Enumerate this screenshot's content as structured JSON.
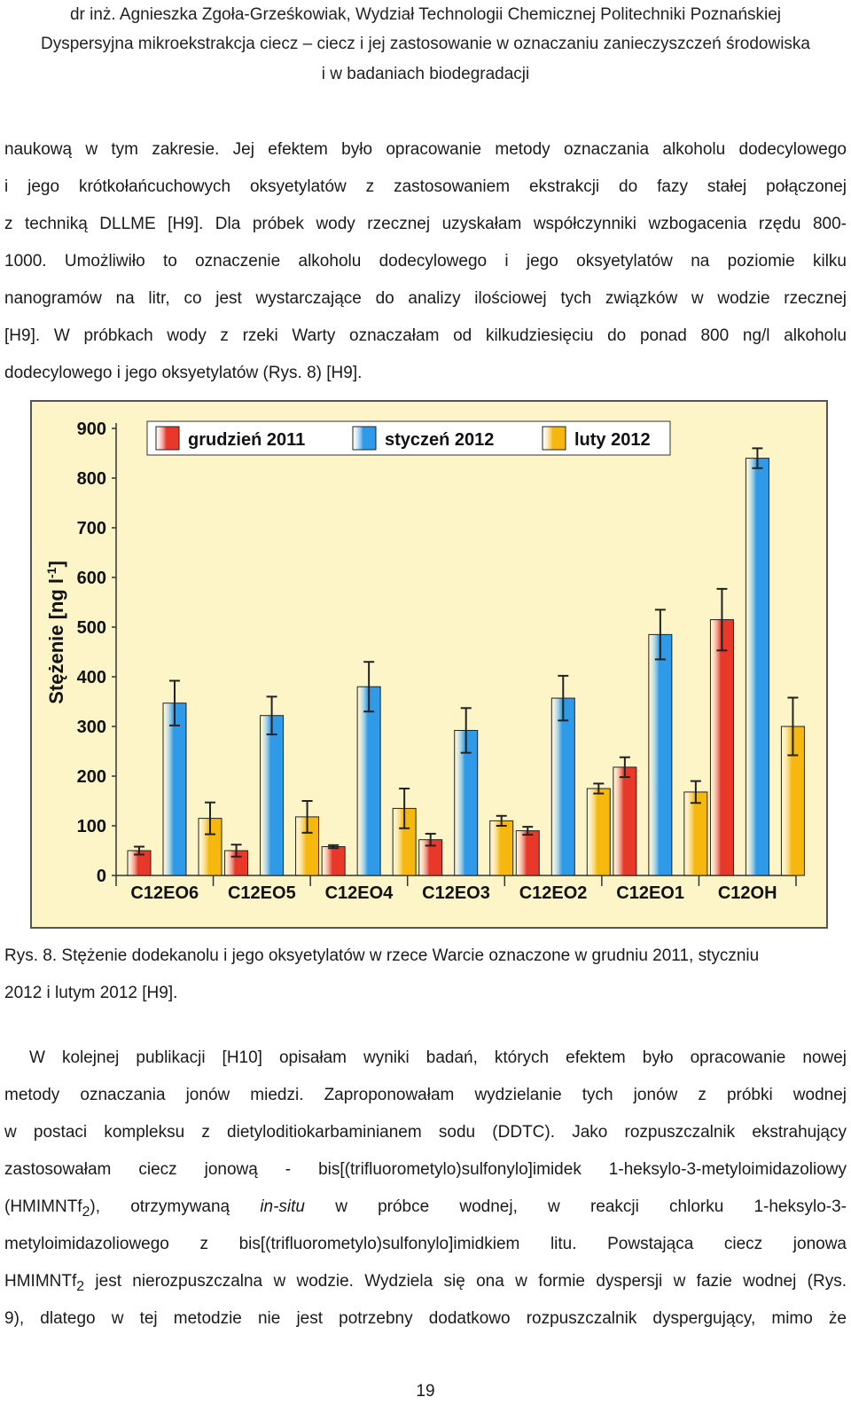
{
  "header": {
    "line1": "dr inż. Agnieszka Zgoła-Grześkowiak, Wydział Technologii Chemicznej Politechniki Poznańskiej",
    "line2": "Dyspersyjna mikroekstrakcja ciecz – ciecz i jej zastosowanie w oznaczaniu zanieczyszczeń środowiska",
    "line3": "i w badaniach biodegradacji"
  },
  "paragraph1": [
    "naukową w tym zakresie. Jej efektem było opracowanie metody oznaczania alkoholu dodecylowego",
    "i jego krótkołańcuchowych oksyetylatów z zastosowaniem ekstrakcji do fazy stałej połączonej",
    "z techniką DLLME [H9]. Dla próbek wody rzecznej uzyskałam współczynniki wzbogacenia rzędu 800-",
    "1000. Umożliwiło to oznaczenie alkoholu dodecylowego i jego oksyetylatów na poziomie kilku",
    "nanogramów na litr, co jest wystarczające do analizy ilościowej tych związków w wodzie rzecznej",
    "[H9]. W próbkach wody z rzeki Warty oznaczałam od kilkudziesięciu do ponad 800 ng/l alkoholu",
    "dodecylowego i jego oksyetylatów (Rys. 8) [H9]."
  ],
  "caption": {
    "line1": "Rys. 8. Stężenie dodekanolu i jego oksyetylatów w rzece Warcie oznaczone w grudniu 2011, styczniu",
    "line2": "2012 i lutym 2012 [H9]."
  },
  "paragraph2": {
    "l1": "W kolejnej publikacji [H10] opisałam wyniki badań, których efektem było opracowanie nowej",
    "l2": "metody oznaczania jonów miedzi. Zaproponowałam wydzielanie tych jonów z próbki wodnej",
    "l3": "w postaci kompleksu z dietyloditiokarbaminianem sodu (DDTC). Jako rozpuszczalnik ekstrahujący",
    "l4": "zastosowałam ciecz jonową - bis[(trifluorometylo)sulfonylo]imidek 1-heksylo-3-metyloimidazoliowy",
    "l5a": "(HMIMNTf",
    "l5sub": "2",
    "l5b": "), otrzymywaną",
    "l5it": "in-situ",
    "l5c": "w próbce wodnej, w reakcji chlorku 1-heksylo-3-",
    "l6": "metyloimidazoliowego z bis[(trifluorometylo)sulfonylo]imidkiem litu. Powstająca ciecz jonowa",
    "l7a": "HMIMNTf",
    "l7sub": "2",
    "l7b": " jest nierozpuszczalna w wodzie. Wydziela się ona w formie dyspersji w fazie wodnej (Rys.",
    "l8": "9), dlatego w tej metodzie nie jest potrzebny dodatkowo rozpuszczalnik dyspergujący, mimo że"
  },
  "page_number": "19",
  "chart_data": {
    "type": "bar",
    "ylabel": "Stężenie [ng l-1]",
    "ylim": [
      0,
      900
    ],
    "yticks": [
      "0",
      "100",
      "200",
      "300",
      "400",
      "500",
      "600",
      "700",
      "800",
      "900"
    ],
    "categories": [
      "C12EO6",
      "C12EO5",
      "C12EO4",
      "C12EO3",
      "C12EO2",
      "C12EO1",
      "C12OH"
    ],
    "legend_position": "top",
    "series": [
      {
        "name": "grudzień 2011",
        "color": "#e8382a",
        "values": [
          50,
          50,
          58,
          72,
          90,
          218,
          515
        ],
        "errors": [
          8,
          12,
          3,
          12,
          8,
          20,
          62
        ]
      },
      {
        "name": "styczeń 2012",
        "color": "#2f9be8",
        "values": [
          347,
          322,
          380,
          292,
          357,
          485,
          840
        ],
        "errors": [
          45,
          38,
          50,
          45,
          45,
          50,
          20
        ]
      },
      {
        "name": "luty 2012",
        "color": "#f6b70f",
        "values": [
          115,
          118,
          135,
          110,
          175,
          168,
          300
        ],
        "errors": [
          32,
          32,
          40,
          10,
          10,
          22,
          58
        ]
      }
    ]
  }
}
